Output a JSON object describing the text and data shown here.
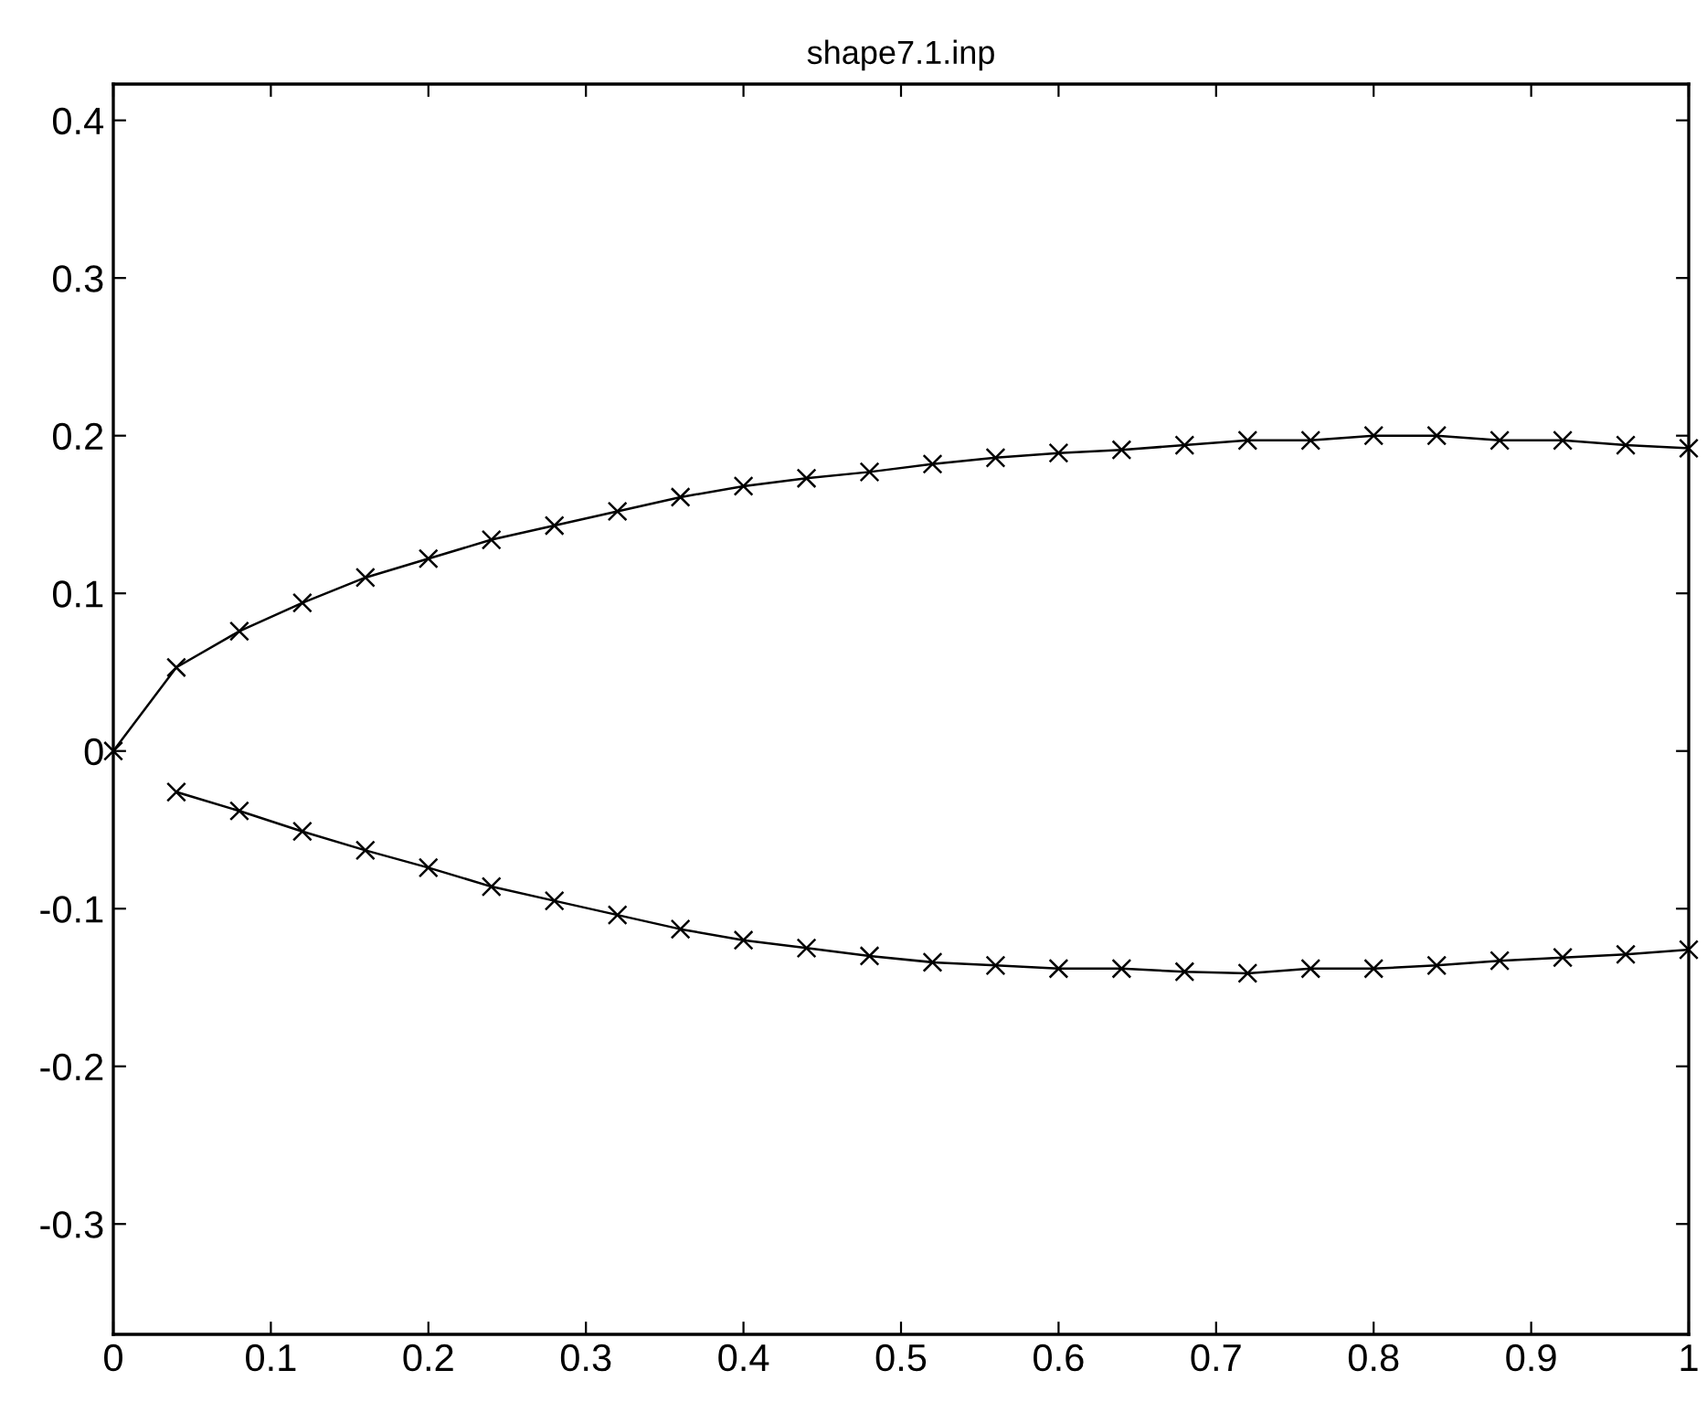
{
  "chart_data": {
    "type": "line",
    "title": "shape7.1.inp",
    "marker": "cross",
    "line_style": "solid",
    "grid": false,
    "legend": false,
    "xlim": [
      0,
      1
    ],
    "xticks": [
      0,
      0.1,
      0.2,
      0.3,
      0.4,
      0.5,
      0.6,
      0.7,
      0.8,
      0.9,
      1
    ],
    "ylim": [
      -0.37,
      0.423
    ],
    "yticks": [
      -0.3,
      -0.2,
      -0.1,
      0,
      0.1,
      0.2,
      0.3,
      0.4
    ],
    "series": [
      {
        "color": "#000000",
        "x": [
          0,
          0.04,
          0.08,
          0.12,
          0.16,
          0.2,
          0.24,
          0.28,
          0.32,
          0.36,
          0.4,
          0.44,
          0.48,
          0.52,
          0.56,
          0.6,
          0.64,
          0.68,
          0.72,
          0.76,
          0.8,
          0.84,
          0.88,
          0.92,
          0.96,
          1
        ],
        "values": [
          0,
          0.053,
          0.076,
          0.094,
          0.11,
          0.122,
          0.134,
          0.143,
          0.152,
          0.161,
          0.168,
          0.173,
          0.177,
          0.182,
          0.186,
          0.189,
          0.191,
          0.194,
          0.197,
          0.197,
          0.2,
          0.2,
          0.197,
          0.197,
          0.194,
          0.192
        ]
      },
      {
        "color": "#000000",
        "x": [
          0.04,
          0.08,
          0.12,
          0.16,
          0.2,
          0.24,
          0.28,
          0.32,
          0.36,
          0.4,
          0.44,
          0.48,
          0.52,
          0.56,
          0.6,
          0.64,
          0.68,
          0.72,
          0.76,
          0.8,
          0.84,
          0.88,
          0.92,
          0.96,
          1
        ],
        "values": [
          -0.026,
          -0.038,
          -0.051,
          -0.063,
          -0.074,
          -0.086,
          -0.095,
          -0.104,
          -0.113,
          -0.12,
          -0.125,
          -0.13,
          -0.134,
          -0.136,
          -0.138,
          -0.138,
          -0.14,
          -0.141,
          -0.138,
          -0.138,
          -0.136,
          -0.133,
          -0.131,
          -0.129,
          -0.126
        ]
      }
    ]
  }
}
